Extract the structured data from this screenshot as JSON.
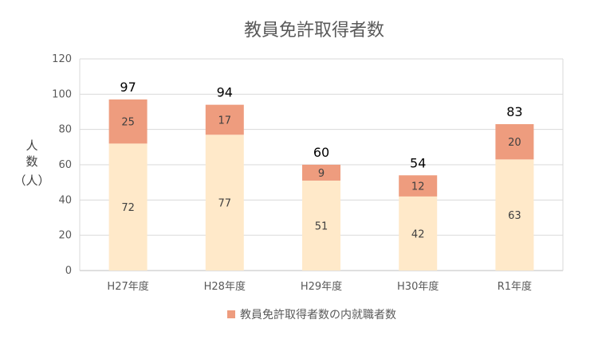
{
  "chart_data": {
    "type": "bar",
    "stacked": true,
    "title": "教員免許取得者数",
    "ylabel": [
      "人",
      "数",
      "（人）"
    ],
    "ylim": [
      0,
      120
    ],
    "yticks": [
      0,
      20,
      40,
      60,
      80,
      100,
      120
    ],
    "categories": [
      "H27年度",
      "H28年度",
      "H29年度",
      "H30年度",
      "R1年度"
    ],
    "series": [
      {
        "values": [
          72,
          77,
          51,
          42,
          63
        ],
        "color": "#FFE9C9"
      },
      {
        "name": "教員免許取得者数の内就職者数",
        "values": [
          25,
          17,
          9,
          12,
          20
        ],
        "color": "#EE9C7E"
      }
    ],
    "totals": [
      97,
      94,
      60,
      54,
      83
    ],
    "grid": true,
    "legend": "bottom"
  }
}
